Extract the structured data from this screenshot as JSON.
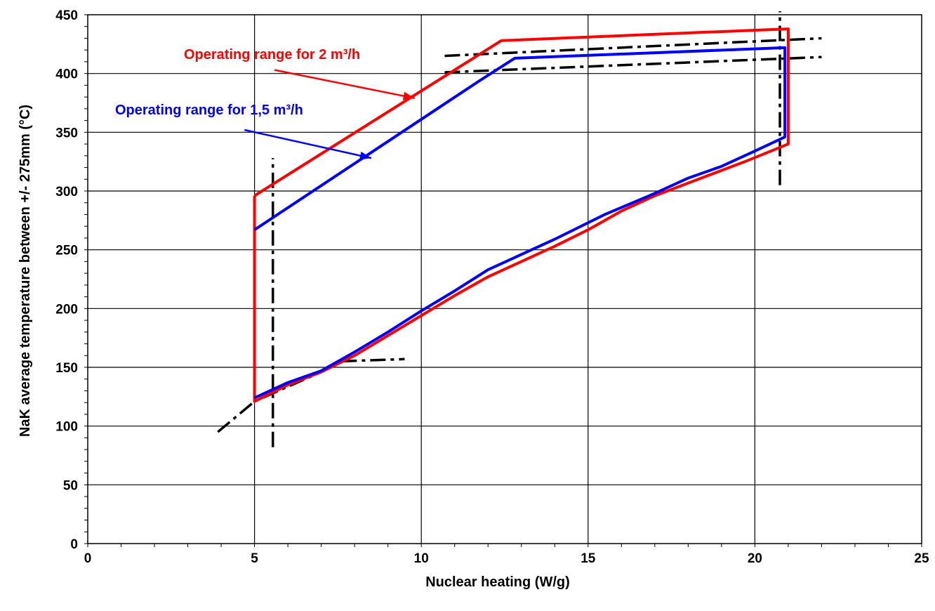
{
  "chart_data": {
    "type": "line",
    "xlabel": "Nuclear heating (W/g)",
    "ylabel": "NaK average temperature between +/- 275mm (°C)",
    "xlim": [
      0,
      25
    ],
    "ylim": [
      0,
      450
    ],
    "x_ticks": [
      0,
      5,
      10,
      15,
      20,
      25
    ],
    "y_ticks": [
      0,
      50,
      100,
      150,
      200,
      250,
      300,
      350,
      400,
      450
    ],
    "x_minor_step": 1,
    "y_minor_step": 10,
    "grid": true,
    "series": [
      {
        "color": "#ff0000",
        "points": [
          [
            5,
            296
          ],
          [
            12.4,
            428
          ],
          [
            21,
            438
          ],
          [
            21,
            340
          ],
          [
            19.7,
            325
          ],
          [
            18.3,
            310
          ],
          [
            17,
            296
          ],
          [
            16,
            283
          ],
          [
            15,
            267
          ],
          [
            14,
            253
          ],
          [
            13,
            240
          ],
          [
            12,
            227
          ],
          [
            11,
            211
          ],
          [
            10,
            194
          ],
          [
            9,
            177
          ],
          [
            8,
            160
          ],
          [
            7,
            146
          ],
          [
            6,
            135
          ],
          [
            5,
            121
          ],
          [
            5,
            296
          ]
        ]
      },
      {
        "color": "#0000ff",
        "points": [
          [
            5,
            267
          ],
          [
            11.7,
            393
          ],
          [
            12.8,
            413
          ],
          [
            20.9,
            422
          ],
          [
            20.9,
            346
          ],
          [
            20,
            334
          ],
          [
            19,
            321
          ],
          [
            18,
            311
          ],
          [
            17,
            298
          ],
          [
            15.5,
            280
          ],
          [
            14,
            259
          ],
          [
            13,
            246
          ],
          [
            12,
            233
          ],
          [
            11,
            215
          ],
          [
            10,
            198
          ],
          [
            9,
            180
          ],
          [
            8,
            163
          ],
          [
            7,
            147
          ],
          [
            6,
            137
          ],
          [
            5,
            124
          ]
        ]
      }
    ],
    "limit_lines": [
      {
        "color": "#000000",
        "points": [
          [
            5.55,
            82
          ],
          [
            5.55,
            328
          ]
        ]
      },
      {
        "color": "#000000",
        "points": [
          [
            20.75,
            305
          ],
          [
            20.75,
            453
          ]
        ]
      },
      {
        "color": "#000000",
        "points": [
          [
            3.9,
            95
          ],
          [
            5,
            121
          ],
          [
            7,
            146
          ],
          [
            7.5,
            155
          ],
          [
            9.5,
            157
          ]
        ]
      },
      {
        "color": "#000000",
        "points": [
          [
            10.7,
            415
          ],
          [
            22,
            430
          ]
        ]
      },
      {
        "color": "#000000",
        "points": [
          [
            10.7,
            401
          ],
          [
            22,
            414
          ]
        ]
      }
    ],
    "annotations": [
      {
        "text": "Operating range for 2 m³/h",
        "color": "#ff0000",
        "arrow_from": [
          5.6,
          403
        ],
        "arrow_to": [
          9.8,
          379
        ]
      },
      {
        "text": "Operating range for 1,5 m³/h",
        "color": "#0000ff",
        "arrow_from": [
          4.7,
          352
        ],
        "arrow_to": [
          8.5,
          328
        ]
      }
    ]
  }
}
